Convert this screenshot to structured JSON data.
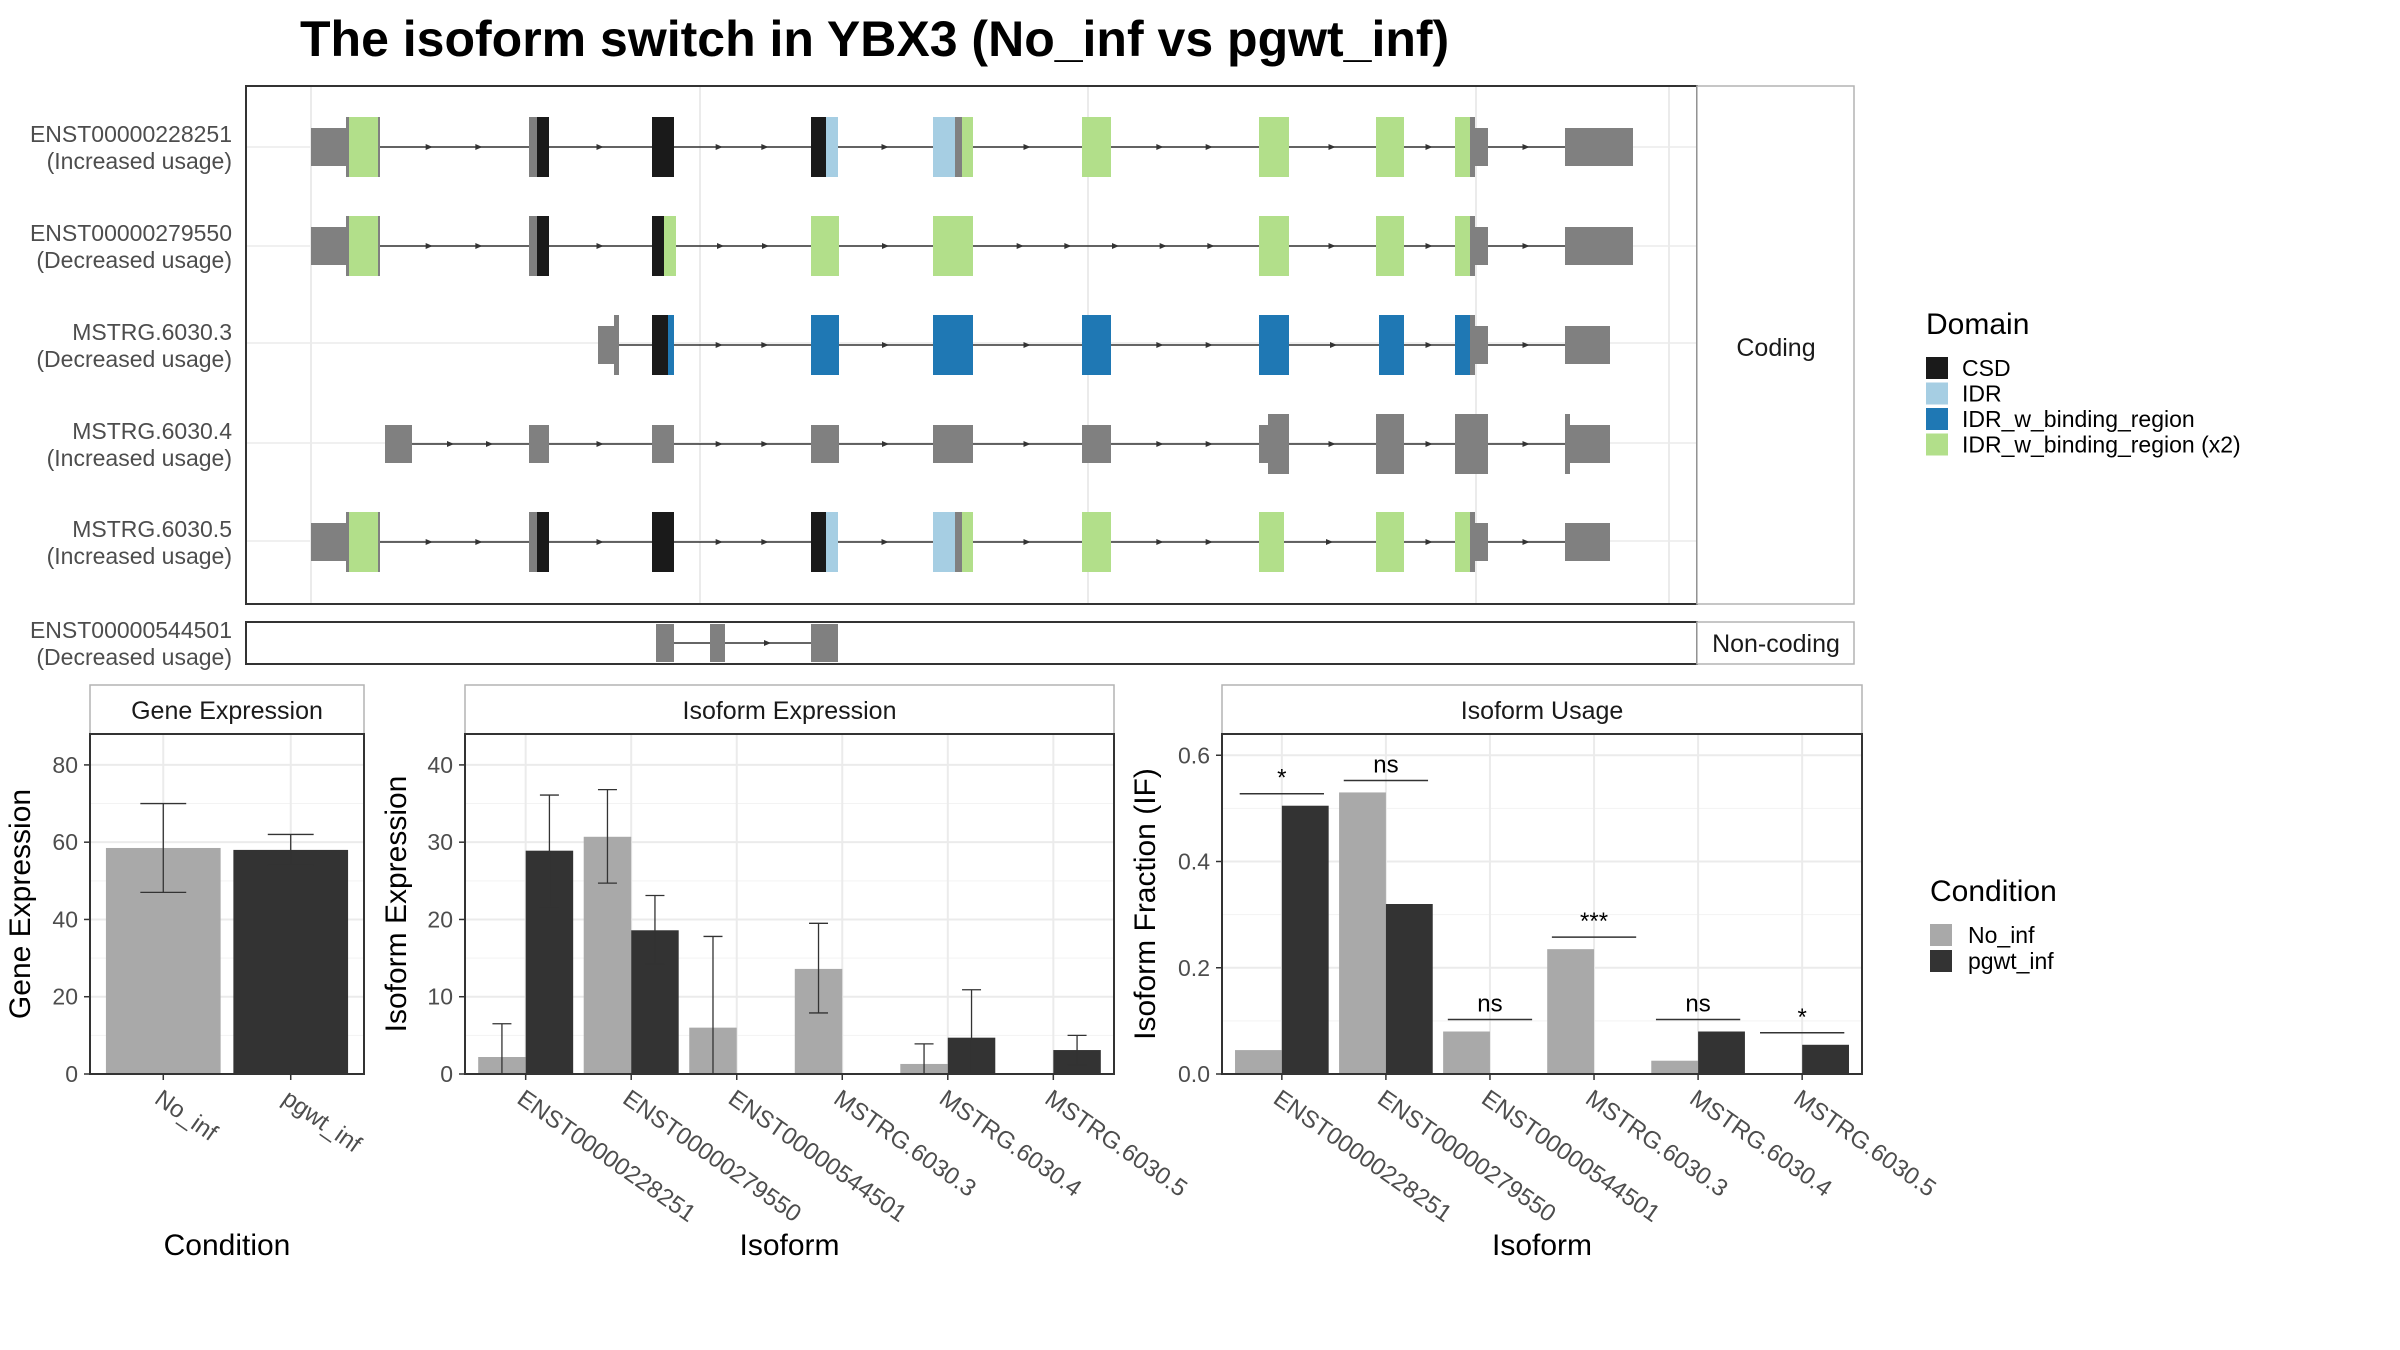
{
  "title": "The isoform switch in YBX3 (No_inf vs pgwt_inf)",
  "colors": {
    "CSD": "#1a1a1a",
    "IDR": "#a6cee3",
    "IDR_w_binding_region": "#1f78b4",
    "IDR_w_binding_region (x2)": "#b2df8a",
    "exon": "#808080",
    "No_inf": "#a9a9a9",
    "pgwt_inf": "#333333",
    "panel_border": "#333333",
    "grid": "#ebebeb",
    "strip_border": "#b3b3b3"
  },
  "structure": {
    "coding_strip": "Coding",
    "noncoding_strip": "Non-coding",
    "isoforms": [
      {
        "id": "ENST00000228251",
        "usage": "(Increased usage)",
        "coding": true
      },
      {
        "id": "ENST00000279550",
        "usage": "(Decreased usage)",
        "coding": true
      },
      {
        "id": "MSTRG.6030.3",
        "usage": "(Decreased usage)",
        "coding": true
      },
      {
        "id": "MSTRG.6030.4",
        "usage": "(Increased usage)",
        "coding": true
      },
      {
        "id": "MSTRG.6030.5",
        "usage": "(Increased usage)",
        "coding": true
      },
      {
        "id": "ENST00000544501",
        "usage": "(Decreased usage)",
        "coding": false
      }
    ]
  },
  "legend_domain": {
    "title": "Domain",
    "items": [
      "CSD",
      "IDR",
      "IDR_w_binding_region",
      "IDR_w_binding_region (x2)"
    ]
  },
  "legend_condition": {
    "title": "Condition",
    "items": [
      "No_inf",
      "pgwt_inf"
    ]
  },
  "chart_data": [
    {
      "type": "bar",
      "title": "Gene Expression",
      "xlabel": "Condition",
      "ylabel": "Gene Expression",
      "categories": [
        "No_inf",
        "pgwt_inf"
      ],
      "values": [
        58.5,
        58.0
      ],
      "error": [
        [
          47,
          70
        ],
        [
          54,
          62
        ]
      ],
      "ylim": [
        0,
        88
      ],
      "yticks": [
        0,
        20,
        40,
        60,
        80
      ]
    },
    {
      "type": "bar",
      "title": "Isoform Expression",
      "xlabel": "Isoform",
      "ylabel": "Isoform Expression",
      "categories": [
        "ENST00000228251",
        "ENST00000279550",
        "ENST00000544501",
        "MSTRG.6030.3",
        "MSTRG.6030.4",
        "MSTRG.6030.5"
      ],
      "series": [
        {
          "name": "No_inf",
          "values": [
            2.2,
            30.7,
            6.0,
            13.6,
            1.3,
            0.0
          ],
          "error": [
            [
              0,
              6.5
            ],
            [
              24.7,
              36.8
            ],
            [
              0,
              17.8
            ],
            [
              7.9,
              19.5
            ],
            [
              0,
              3.9
            ],
            [
              0,
              0
            ]
          ]
        },
        {
          "name": "pgwt_inf",
          "values": [
            28.9,
            18.6,
            0.0,
            0.0,
            4.7,
            3.1
          ],
          "error": [
            [
              21.6,
              36.1
            ],
            [
              14.2,
              23.1
            ],
            [
              0,
              0
            ],
            [
              0,
              0
            ],
            [
              0,
              10.9
            ],
            [
              1.2,
              5.0
            ]
          ]
        }
      ],
      "ylim": [
        0,
        44
      ],
      "yticks": [
        0,
        10,
        20,
        30,
        40
      ]
    },
    {
      "type": "bar",
      "title": "Isoform Usage",
      "xlabel": "Isoform",
      "ylabel": "Isoform Fraction (IF)",
      "categories": [
        "ENST00000228251",
        "ENST00000279550",
        "ENST00000544501",
        "MSTRG.6030.3",
        "MSTRG.6030.4",
        "MSTRG.6030.5"
      ],
      "series": [
        {
          "name": "No_inf",
          "values": [
            0.045,
            0.53,
            0.08,
            0.235,
            0.025,
            0.0
          ]
        },
        {
          "name": "pgwt_inf",
          "values": [
            0.505,
            0.32,
            0.0,
            0.0,
            0.08,
            0.055
          ]
        }
      ],
      "significance": [
        "*",
        "ns",
        "ns",
        "***",
        "ns",
        "*"
      ],
      "ylim": [
        0,
        0.64
      ],
      "yticks": [
        0.0,
        0.2,
        0.4,
        0.6
      ]
    }
  ]
}
